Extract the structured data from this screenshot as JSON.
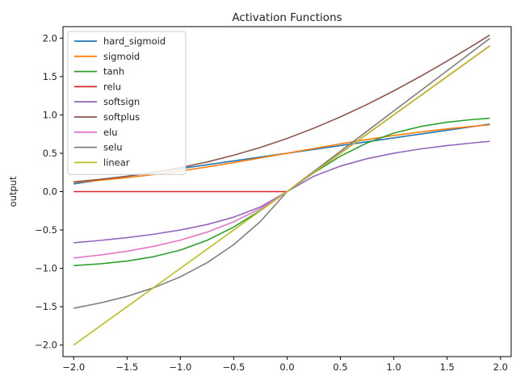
{
  "chart_data": {
    "type": "line",
    "title": "Activation Functions",
    "xlabel": "",
    "ylabel": "output",
    "xlim": [
      -2.1,
      2.1
    ],
    "ylim": [
      -2.15,
      2.15
    ],
    "xticks": [
      -2.0,
      -1.5,
      -1.0,
      -0.5,
      0.0,
      0.5,
      1.0,
      1.5,
      2.0
    ],
    "xtick_labels": [
      "−2.0",
      "−1.5",
      "−1.0",
      "−0.5",
      "0.0",
      "0.5",
      "1.0",
      "1.5",
      "2.0"
    ],
    "yticks": [
      2.0,
      1.5,
      1.0,
      0.5,
      0.0,
      -0.5,
      -1.0,
      -1.5,
      -2.0
    ],
    "ytick_labels": [
      "2.0",
      "1.5",
      "1.0",
      "0.5",
      "0.0",
      "−0.5",
      "−1.0",
      "−1.5",
      "−2.0"
    ],
    "grid": false,
    "legend_position": "top-left",
    "x": [
      -2.0,
      -1.75,
      -1.5,
      -1.25,
      -1.0,
      -0.75,
      -0.5,
      -0.25,
      0.0,
      0.25,
      0.5,
      0.75,
      1.0,
      1.25,
      1.5,
      1.75,
      1.9
    ],
    "series": [
      {
        "name": "hard_sigmoid",
        "color": "#1f77b4",
        "values": [
          0.1,
          0.15,
          0.2,
          0.25,
          0.3,
          0.35,
          0.4,
          0.45,
          0.5,
          0.55,
          0.6,
          0.65,
          0.7,
          0.75,
          0.8,
          0.85,
          0.88
        ]
      },
      {
        "name": "sigmoid",
        "color": "#ff7f0e",
        "values": [
          0.119,
          0.148,
          0.182,
          0.223,
          0.269,
          0.321,
          0.378,
          0.438,
          0.5,
          0.562,
          0.622,
          0.679,
          0.731,
          0.777,
          0.818,
          0.852,
          0.87
        ]
      },
      {
        "name": "tanh",
        "color": "#2ca02c",
        "values": [
          -0.964,
          -0.941,
          -0.905,
          -0.848,
          -0.762,
          -0.635,
          -0.462,
          -0.245,
          0.0,
          0.245,
          0.462,
          0.635,
          0.762,
          0.848,
          0.905,
          0.941,
          0.956
        ]
      },
      {
        "name": "relu",
        "color": "#d62728",
        "values": [
          0,
          0,
          0,
          0,
          0,
          0,
          0,
          0,
          0,
          0.25,
          0.5,
          0.75,
          1.0,
          1.25,
          1.5,
          1.75,
          1.9
        ]
      },
      {
        "name": "softsign",
        "color": "#9467bd",
        "values": [
          -0.667,
          -0.636,
          -0.6,
          -0.556,
          -0.5,
          -0.429,
          -0.333,
          -0.2,
          0.0,
          0.2,
          0.333,
          0.429,
          0.5,
          0.556,
          0.6,
          0.636,
          0.655
        ]
      },
      {
        "name": "softplus",
        "color": "#8c564b",
        "values": [
          0.127,
          0.16,
          0.201,
          0.252,
          0.313,
          0.386,
          0.474,
          0.576,
          0.693,
          0.826,
          0.974,
          1.136,
          1.313,
          1.502,
          1.701,
          1.91,
          2.04
        ]
      },
      {
        "name": "elu",
        "color": "#e377c2",
        "values": [
          -0.865,
          -0.826,
          -0.777,
          -0.713,
          -0.632,
          -0.528,
          -0.393,
          -0.221,
          0.0,
          0.25,
          0.5,
          0.75,
          1.0,
          1.25,
          1.5,
          1.75,
          1.9
        ]
      },
      {
        "name": "selu",
        "color": "#7f7f7f",
        "values": [
          -1.52,
          -1.451,
          -1.365,
          -1.253,
          -1.111,
          -0.927,
          -0.691,
          -0.389,
          0.0,
          0.263,
          0.525,
          0.788,
          1.051,
          1.313,
          1.576,
          1.839,
          1.996
        ]
      },
      {
        "name": "linear",
        "color": "#bcbd22",
        "values": [
          -2.0,
          -1.75,
          -1.5,
          -1.25,
          -1.0,
          -0.75,
          -0.5,
          -0.25,
          0.0,
          0.25,
          0.5,
          0.75,
          1.0,
          1.25,
          1.5,
          1.75,
          1.9
        ]
      }
    ]
  }
}
